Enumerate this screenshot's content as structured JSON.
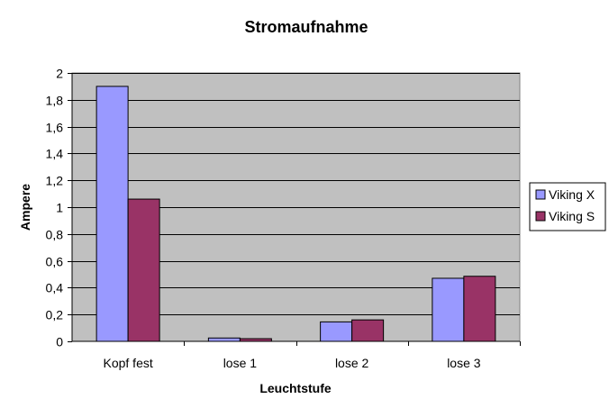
{
  "chart_data": {
    "type": "bar",
    "title": "Stromaufnahme",
    "xlabel": "Leuchtstufe",
    "ylabel": "Ampere",
    "categories": [
      "Kopf fest",
      "lose 1",
      "lose 2",
      "lose 3"
    ],
    "series": [
      {
        "name": "Viking X",
        "values": [
          1.9,
          0.025,
          0.145,
          0.47
        ],
        "color": "#9999FF"
      },
      {
        "name": "Viking S",
        "values": [
          1.06,
          0.02,
          0.16,
          0.485
        ],
        "color": "#993366"
      }
    ],
    "ylim": [
      0,
      2
    ],
    "yticks": [
      "0",
      "0,2",
      "0,4",
      "0,6",
      "0,8",
      "1",
      "1,2",
      "1,4",
      "1,6",
      "1,8",
      "2"
    ],
    "grid": true,
    "plot_background": "#C0C0C0",
    "legend_position": "right"
  }
}
